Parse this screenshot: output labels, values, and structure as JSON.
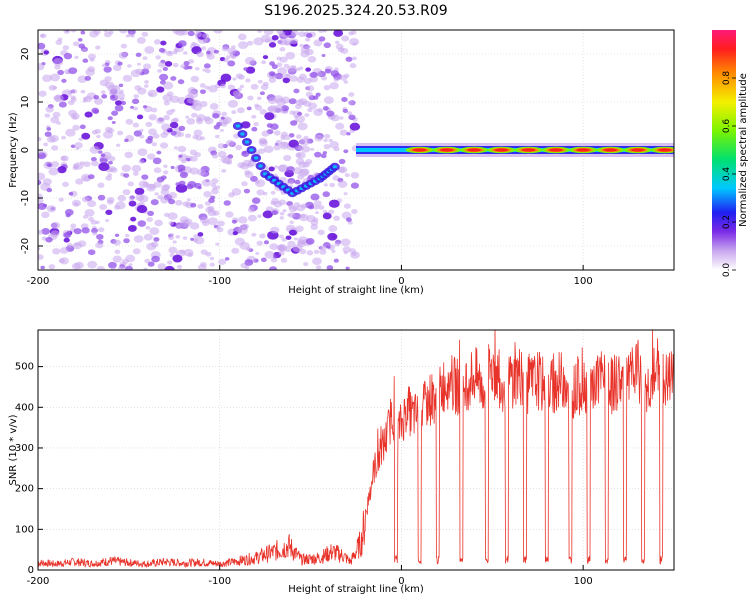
{
  "title": "S196.2025.324.20.53.R09",
  "chart_data": [
    {
      "type": "heatmap",
      "xlabel": "Height of straight line (km)",
      "ylabel": "Frequency (Hz)",
      "xlim": [
        -200,
        150
      ],
      "ylim": [
        -25,
        25
      ],
      "x_ticks": [
        -200,
        -100,
        0,
        100
      ],
      "y_ticks": [
        -20,
        -10,
        0,
        10,
        20
      ],
      "colorbar": {
        "label": "Normalized spectral amplitude",
        "range": [
          0,
          1
        ],
        "ticks": [
          0.0,
          0.2,
          0.4,
          0.6,
          0.8
        ]
      },
      "noise_region_x": [
        -200,
        -25
      ],
      "tone_frequency": 0,
      "tone_segment_centers": [
        10,
        25,
        40,
        55,
        70,
        85,
        100,
        115,
        130,
        145
      ],
      "tone_amplitude": 0.95,
      "transient_track": [
        [
          -90,
          5
        ],
        [
          -75,
          -5
        ],
        [
          -60,
          -9
        ],
        [
          -45,
          -6
        ],
        [
          -35,
          -3
        ]
      ],
      "colors": {
        "grid": "#d0d0d0",
        "frame": "#000000"
      }
    },
    {
      "type": "line",
      "xlabel": "Height of straight line (km)",
      "ylabel": "SNR (10 * v/v)",
      "xlim": [
        -200,
        150
      ],
      "ylim": [
        0,
        590
      ],
      "x_ticks": [
        -200,
        -100,
        0,
        100
      ],
      "y_ticks": [
        0,
        100,
        200,
        300,
        400,
        500
      ],
      "grid": true,
      "series": [
        {
          "color": "#e8332a",
          "points": [
            [
              -200,
              18
            ],
            [
              -190,
              15
            ],
            [
              -180,
              20
            ],
            [
              -170,
              16
            ],
            [
              -160,
              22
            ],
            [
              -150,
              18
            ],
            [
              -140,
              15
            ],
            [
              -130,
              20
            ],
            [
              -120,
              17
            ],
            [
              -110,
              19
            ],
            [
              -100,
              15
            ],
            [
              -90,
              22
            ],
            [
              -80,
              30
            ],
            [
              -70,
              45
            ],
            [
              -62,
              60
            ],
            [
              -55,
              25
            ],
            [
              -45,
              30
            ],
            [
              -38,
              45
            ],
            [
              -32,
              35
            ],
            [
              -28,
              20
            ],
            [
              -22,
              70
            ],
            [
              -18,
              180
            ],
            [
              -15,
              250
            ],
            [
              -12,
              280
            ],
            [
              -8,
              330
            ],
            [
              -5,
              390
            ],
            [
              -2,
              340
            ],
            [
              0,
              360
            ],
            [
              3,
              400
            ],
            [
              6,
              380
            ],
            [
              10,
              380
            ],
            [
              15,
              420
            ],
            [
              20,
              430
            ],
            [
              25,
              470
            ],
            [
              30,
              450
            ],
            [
              35,
              460
            ],
            [
              40,
              480
            ],
            [
              45,
              450
            ],
            [
              50,
              500
            ],
            [
              55,
              460
            ],
            [
              60,
              470
            ],
            [
              65,
              480
            ],
            [
              70,
              450
            ],
            [
              75,
              470
            ],
            [
              80,
              440
            ],
            [
              85,
              460
            ],
            [
              90,
              470
            ],
            [
              95,
              440
            ],
            [
              100,
              460
            ],
            [
              105,
              450
            ],
            [
              110,
              470
            ],
            [
              115,
              450
            ],
            [
              120,
              470
            ],
            [
              125,
              460
            ],
            [
              130,
              490
            ],
            [
              135,
              450
            ],
            [
              140,
              480
            ],
            [
              145,
              460
            ],
            [
              150,
              470
            ]
          ],
          "dropouts_x": [
            -3,
            10,
            20,
            33,
            47,
            58,
            68,
            80,
            93,
            103,
            113,
            123,
            133,
            143
          ],
          "dropout_level": 25
        }
      ]
    }
  ]
}
